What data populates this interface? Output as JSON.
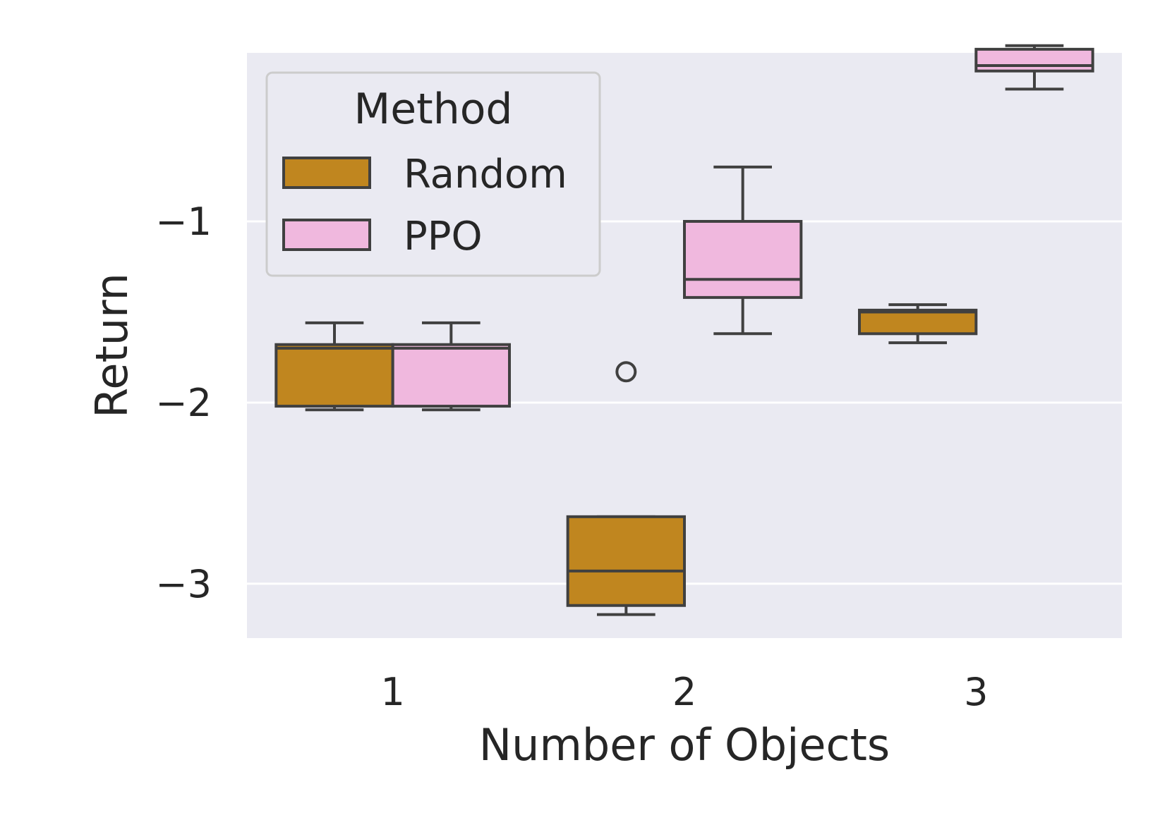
{
  "chart_data": {
    "type": "box",
    "xlabel": "Number of Objects",
    "ylabel": "Return",
    "categories": [
      "1",
      "2",
      "3"
    ],
    "yticks": [
      -1,
      -2,
      -3
    ],
    "ytick_labels": [
      "−1",
      "−2",
      "−3"
    ],
    "ylim": [
      -3.3,
      -0.07
    ],
    "grid": true,
    "legend": {
      "title": "Method",
      "position": "top-left"
    },
    "colors": {
      "Random": "#c0861f",
      "PPO": "#f0b8de",
      "edge": "#404040",
      "background": "#eaeaf2",
      "grid": "#ffffff"
    },
    "series": [
      {
        "name": "Random",
        "boxes": [
          {
            "category": "1",
            "whislo": -2.04,
            "q1": -2.02,
            "med": -1.7,
            "q3": -1.68,
            "whishi": -1.56,
            "fliers": []
          },
          {
            "category": "2",
            "whislo": -3.17,
            "q1": -3.12,
            "med": -2.93,
            "q3": -2.63,
            "whishi": -2.63,
            "fliers": [
              -1.83
            ]
          },
          {
            "category": "3",
            "whislo": -1.67,
            "q1": -1.62,
            "med": -1.5,
            "q3": -1.49,
            "whishi": -1.46,
            "fliers": []
          }
        ]
      },
      {
        "name": "PPO",
        "boxes": [
          {
            "category": "1",
            "whislo": -2.04,
            "q1": -2.02,
            "med": -1.7,
            "q3": -1.68,
            "whishi": -1.56,
            "fliers": []
          },
          {
            "category": "2",
            "whislo": -1.62,
            "q1": -1.42,
            "med": -1.32,
            "q3": -1.0,
            "whishi": -0.7,
            "fliers": []
          },
          {
            "category": "3",
            "whislo": -0.27,
            "q1": -0.17,
            "med": -0.14,
            "q3": -0.05,
            "whishi": -0.03,
            "fliers": []
          }
        ]
      }
    ]
  }
}
